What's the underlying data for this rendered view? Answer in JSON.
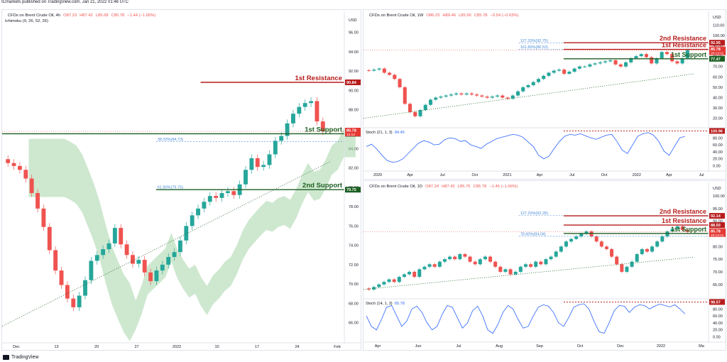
{
  "header": {
    "publisher": "ICmarkets published on TradingView.com, Jan 21, 2022 01:46 UTC"
  },
  "footer": {
    "brand": "TradingView"
  },
  "colors": {
    "resistance": "#b71c1c",
    "support": "#1b5e20",
    "fib": "#4a8bd6",
    "stoch": "#2962ff",
    "up": "#26a69a",
    "down": "#ef5350",
    "cloud_up": "#a5d6a7",
    "cloud_down": "#ffcdd2",
    "price_tag": "#e53935"
  },
  "chart_data": [
    {
      "id": "4h",
      "type": "candlestick",
      "title": "CFDs on Brent Crude Oil, 4h",
      "ohlc_text": {
        "o": "O87.23",
        "h": "H87.42",
        "l": "L85.68",
        "c": "C85.78",
        "chg": "−1.44 (−1.65%)"
      },
      "indicator": "Ichimoku (9, 26, 52, 26)",
      "currency": "USD",
      "ylim": [
        64,
        97
      ],
      "yticks": [
        64.0,
        66.0,
        68.0,
        70.0,
        72.0,
        74.0,
        76.0,
        78.0,
        80.0,
        82.0,
        84.0,
        86.0,
        88.0,
        90.0,
        92.0,
        94.0,
        96.0
      ],
      "xticks": [
        "Dec",
        "13",
        "20",
        "27",
        "2022",
        "10",
        "17",
        "24",
        "Feb"
      ],
      "levels": [
        {
          "label": "1st Resistance",
          "value": 90.84,
          "tag": "90.84",
          "kind": "resistance"
        },
        {
          "label": "1st Support",
          "value": 85.53,
          "tag": "85.53",
          "kind": "support"
        },
        {
          "label": "2nd Support",
          "value": 79.75,
          "tag": "79.75",
          "kind": "support"
        }
      ],
      "fibs": [
        {
          "label": "38.20%(84.73)",
          "value": 84.73
        },
        {
          "label": "61.80%(79.75)",
          "value": 79.75
        }
      ],
      "price_tag": {
        "price": "85.78",
        "timer": "13:12"
      },
      "close_path": [
        82.5,
        82.2,
        81.8,
        80.9,
        79.4,
        77.8,
        75.9,
        73.5,
        71.4,
        69.9,
        68.5,
        67.6,
        68.8,
        70.4,
        72.4,
        73.0,
        73.6,
        74.2,
        75.8,
        74.1,
        73.0,
        72.1,
        72.5,
        71.2,
        70.3,
        71.4,
        72.0,
        72.8,
        73.3,
        74.5,
        76.0,
        77.1,
        77.8,
        78.5,
        79.1,
        78.9,
        79.4,
        79.6,
        79.2,
        80.3,
        81.8,
        83.0,
        82.1,
        82.3,
        83.4,
        84.8,
        85.3,
        86.6,
        87.6,
        88.3,
        88.7,
        88.9,
        86.8,
        85.78
      ]
    },
    {
      "id": "1w",
      "type": "candlestick",
      "title": "CFDs on Brent Crude Oil, 1W",
      "ohlc_text": {
        "o": "O86.23",
        "h": "H89.46",
        "l": "L85.56",
        "c": "C85.78",
        "chg": "−0.54 (−0.63%)"
      },
      "currency": "USD",
      "ylim": [
        15,
        115
      ],
      "yticks": [
        20.0,
        30.0,
        40.0,
        50.0,
        60.0,
        70.0,
        80.0,
        90.0,
        100.0,
        110.0
      ],
      "xticks": [
        "2020",
        "Apr",
        "Jul",
        "Oct",
        "2021",
        "Apr",
        "Jul",
        "Oct",
        "2022",
        "Apr",
        "Jul"
      ],
      "levels": [
        {
          "label": "2nd Resistance",
          "value": 92.95,
          "tag": "92.95",
          "kind": "resistance"
        },
        {
          "label": "1st Resistance",
          "value": 86.51,
          "tag": "86.51",
          "kind": "resistance"
        },
        {
          "label": "1st Support",
          "value": 77.47,
          "tag": "77.47",
          "kind": "support"
        }
      ],
      "fibs": [
        {
          "label": "127.20%(92.75)",
          "value": 92.75
        },
        {
          "label": "161.80%(86.53)",
          "value": 86.53
        }
      ],
      "price_tag": {
        "price": "85.78",
        "timer": "20:13:11"
      },
      "close_path": [
        66,
        67,
        68,
        64,
        62,
        58,
        50,
        34,
        26,
        22,
        28,
        33,
        38,
        40,
        41,
        42,
        43,
        44,
        43,
        44,
        43,
        42,
        41,
        40,
        41,
        42,
        40,
        39,
        42,
        46,
        50,
        52,
        55,
        58,
        61,
        64,
        66,
        67,
        63,
        65,
        68,
        70,
        70,
        72,
        73,
        74,
        75,
        76,
        72,
        70,
        74,
        78,
        80,
        82,
        79,
        73,
        78,
        84,
        82,
        75,
        73,
        78,
        85.78
      ],
      "stoch": {
        "label": "Stoch (21, 1, 3)",
        "value_text": "84.45",
        "ylim": [
          -5,
          105
        ],
        "yticks": [
          0.0,
          20.0,
          40.0,
          60.0,
          80.0
        ],
        "tag": "100.96",
        "values": [
          55,
          62,
          48,
          30,
          15,
          10,
          12,
          20,
          35,
          50,
          65,
          72,
          68,
          60,
          62,
          75,
          80,
          78,
          70,
          72,
          60,
          55,
          50,
          62,
          70,
          78,
          82,
          86,
          90,
          88,
          82,
          68,
          55,
          30,
          20,
          28,
          50,
          70,
          85,
          90,
          88,
          92,
          86,
          80,
          76,
          82,
          88,
          90,
          70,
          45,
          35,
          60,
          85,
          92,
          95,
          88,
          70,
          42,
          30,
          55,
          80,
          84.45
        ]
      }
    },
    {
      "id": "1d",
      "type": "candlestick",
      "title": "CFDs on Brent Crude Oil, 1D",
      "ohlc_text": {
        "o": "O87.24",
        "h": "H87.42",
        "l": "L85.75",
        "c": "C85.78",
        "chg": "−1.45 (−1.66%)"
      },
      "currency": "USD",
      "ylim": [
        61,
        102
      ],
      "yticks": [
        65.0,
        70.0,
        75.0,
        80.0,
        85.0,
        90.0,
        95.0,
        100.0
      ],
      "xticks": [
        "Apr",
        "Jun",
        "Jul",
        "Aug",
        "Sep",
        "Oct",
        "Dec",
        "2022",
        "Ma"
      ],
      "levels": [
        {
          "label": "2nd Resistance",
          "value": 92.14,
          "tag": "92.14",
          "kind": "resistance"
        },
        {
          "label": "1st Resistance",
          "value": 88.5,
          "tag": "88.50",
          "kind": "resistance"
        },
        {
          "label": "1st Support",
          "value": 85.18,
          "tag": "85.18",
          "kind": "support"
        }
      ],
      "fibs": [
        {
          "label": "127.20%(92.28)",
          "value": 92.28
        },
        {
          "label": "78.60%(84.04)",
          "value": 84.04
        }
      ],
      "price_tag": {
        "price": "85.78",
        "timer": "20:13:11"
      },
      "close_path": [
        63,
        64,
        65,
        66,
        67,
        66,
        68,
        69,
        70,
        68,
        71,
        72,
        73,
        72,
        74,
        75,
        76,
        75,
        77,
        76,
        74,
        73,
        75,
        76,
        74,
        72,
        70,
        71,
        69,
        70,
        72,
        73,
        72,
        74,
        73,
        75,
        76,
        78,
        80,
        82,
        83,
        84,
        85,
        86,
        84,
        82,
        80,
        79,
        76,
        73,
        70,
        72,
        74,
        77,
        79,
        78,
        80,
        82,
        84,
        86,
        87,
        88,
        86.5,
        85.78
      ],
      "stoch": {
        "label": "Stoch (14, 1, 3)",
        "value_text": "65.78",
        "ylim": [
          -5,
          105
        ],
        "yticks": [
          0.0,
          20.0,
          40.0,
          60.0,
          80.0
        ],
        "tag": "98.57",
        "values": [
          60,
          30,
          20,
          50,
          85,
          90,
          60,
          30,
          45,
          80,
          88,
          70,
          40,
          20,
          30,
          65,
          90,
          85,
          55,
          25,
          40,
          75,
          88,
          60,
          20,
          10,
          35,
          70,
          90,
          80,
          50,
          25,
          30,
          60,
          85,
          92,
          88,
          70,
          40,
          30,
          55,
          85,
          92,
          95,
          80,
          45,
          15,
          10,
          40,
          75,
          90,
          88,
          70,
          85,
          92,
          90,
          80,
          88,
          94,
          90,
          86,
          92,
          80,
          65.78
        ]
      }
    }
  ]
}
